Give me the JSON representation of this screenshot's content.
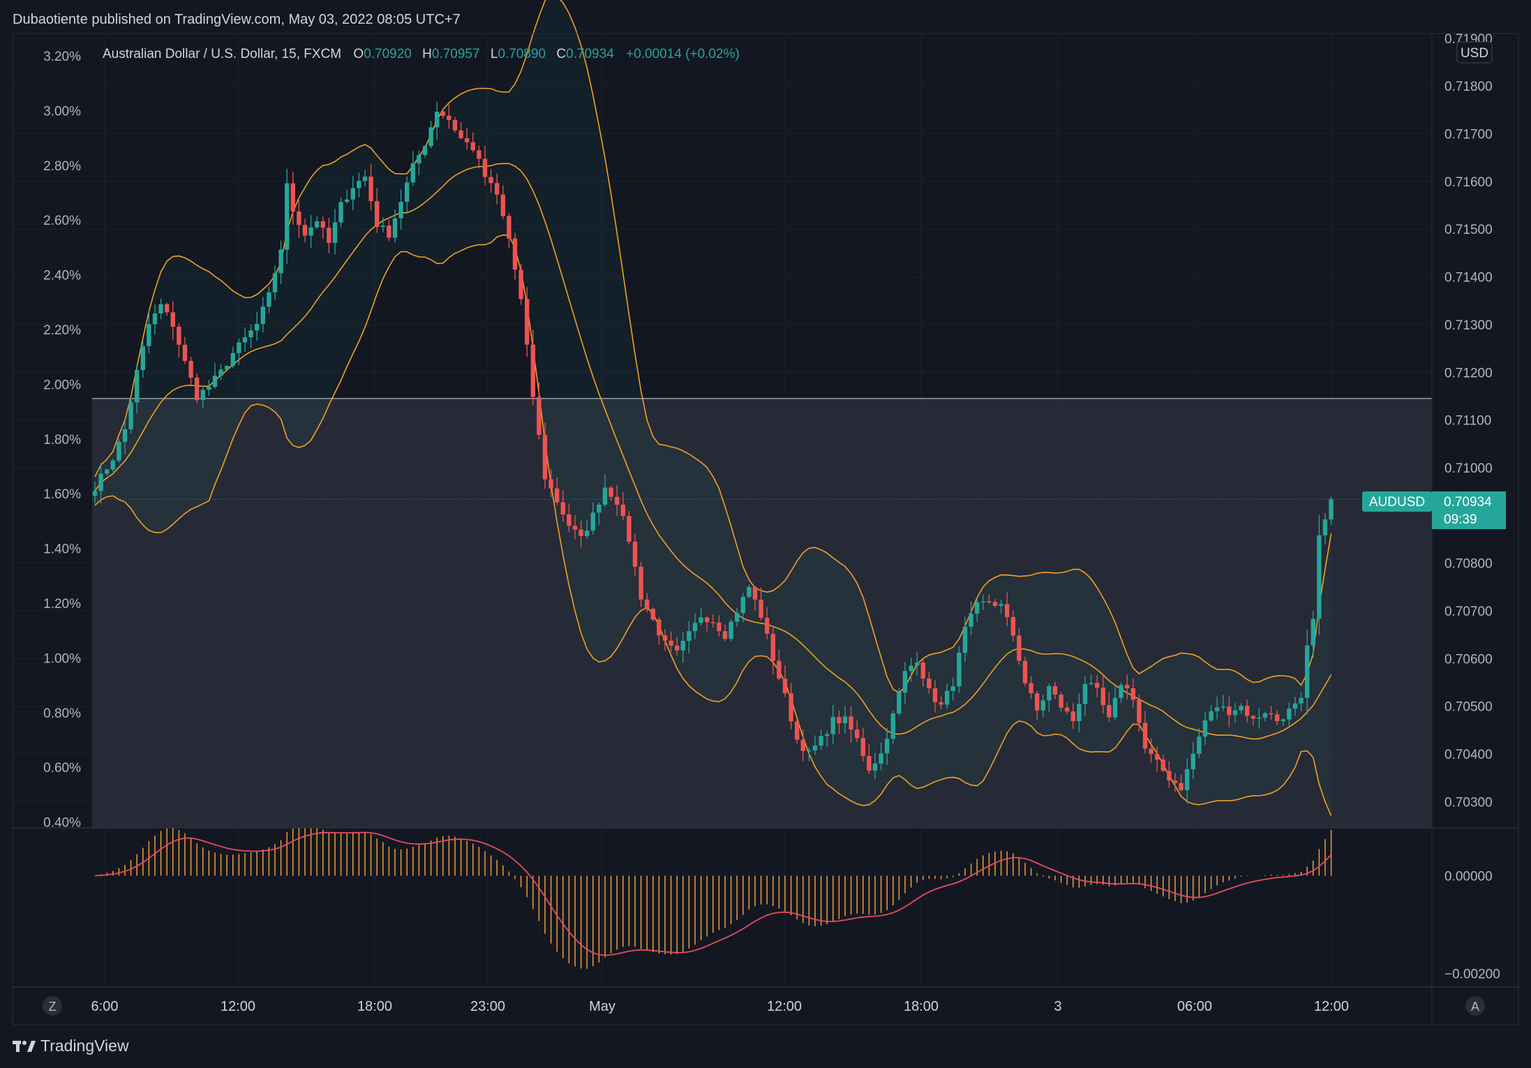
{
  "header": {
    "published": "Dubaotiente published on TradingView.com, May 03, 2022 08:05 UTC+7"
  },
  "legend": {
    "symbol": "Australian Dollar / U.S. Dollar, 15, FXCM",
    "o_label": "O",
    "o_value": "0.70920",
    "h_label": "H",
    "h_value": "0.70957",
    "l_label": "L",
    "l_value": "0.70890",
    "c_label": "C",
    "c_value": "0.70934",
    "change": "+0.00014 (+0.02%)"
  },
  "price_badge": {
    "symbol": "AUDUSD",
    "price": "0.70934",
    "countdown": "09:39"
  },
  "currency_label": "USD",
  "footer": {
    "brand": "TradingView",
    "z_button": "Z",
    "a_button": "A"
  },
  "colors": {
    "background": "#131722",
    "up": "#26a69a",
    "down": "#ef5350",
    "bollinger": "#f0a125",
    "bollinger_fill": "#1c2a33",
    "macd_hist": "#f29d38",
    "signal": "#e84b5f",
    "zone_fill": "#2a2e39"
  },
  "chart_data": {
    "type": "candlestick",
    "interval": "15",
    "right_axis": {
      "unit": "USD",
      "ticks": [
        "0.71900",
        "0.71800",
        "0.71700",
        "0.71600",
        "0.71500",
        "0.71400",
        "0.71300",
        "0.71200",
        "0.71100",
        "0.71000",
        "0.70800",
        "0.70700",
        "0.70600",
        "0.70500",
        "0.70400",
        "0.70300"
      ],
      "ylim": [
        0.70245,
        0.7191
      ]
    },
    "left_axis": {
      "ticks": [
        "3.20%",
        "3.00%",
        "2.80%",
        "2.60%",
        "2.40%",
        "2.20%",
        "2.00%",
        "1.80%",
        "1.60%",
        "1.40%",
        "1.20%",
        "1.00%",
        "0.80%",
        "0.60%",
        "0.40%"
      ]
    },
    "x_ticks": [
      "6:00",
      "12:00",
      "18:00",
      "23:00",
      "May",
      "12:00",
      "18:00",
      "3",
      "06:00",
      "12:00"
    ],
    "macd_axis": {
      "ticks": [
        "0.00000",
        "−0.00200"
      ],
      "ylim": [
        -0.00225,
        0.00095
      ]
    },
    "horizontal_line": 0.71145,
    "last_price": 0.70934,
    "anchors": [
      {
        "i": 0,
        "p": 0.7096
      },
      {
        "i": 3,
        "p": 0.7102
      },
      {
        "i": 5,
        "p": 0.7108
      },
      {
        "i": 7,
        "p": 0.712
      },
      {
        "i": 9,
        "p": 0.713
      },
      {
        "i": 11,
        "p": 0.7134
      },
      {
        "i": 13,
        "p": 0.713
      },
      {
        "i": 15,
        "p": 0.7122
      },
      {
        "i": 17,
        "p": 0.7115
      },
      {
        "i": 19,
        "p": 0.7117
      },
      {
        "i": 21,
        "p": 0.712
      },
      {
        "i": 23,
        "p": 0.7124
      },
      {
        "i": 25,
        "p": 0.7127
      },
      {
        "i": 27,
        "p": 0.713
      },
      {
        "i": 29,
        "p": 0.7136
      },
      {
        "i": 31,
        "p": 0.7146
      },
      {
        "i": 32,
        "p": 0.7159
      },
      {
        "i": 33,
        "p": 0.7154
      },
      {
        "i": 35,
        "p": 0.7149
      },
      {
        "i": 37,
        "p": 0.7152
      },
      {
        "i": 39,
        "p": 0.7147
      },
      {
        "i": 41,
        "p": 0.7155
      },
      {
        "i": 43,
        "p": 0.7159
      },
      {
        "i": 45,
        "p": 0.7161
      },
      {
        "i": 47,
        "p": 0.7151
      },
      {
        "i": 49,
        "p": 0.7149
      },
      {
        "i": 51,
        "p": 0.7156
      },
      {
        "i": 53,
        "p": 0.7163
      },
      {
        "i": 55,
        "p": 0.7168
      },
      {
        "i": 57,
        "p": 0.7175
      },
      {
        "i": 59,
        "p": 0.7173
      },
      {
        "i": 61,
        "p": 0.7169
      },
      {
        "i": 63,
        "p": 0.7167
      },
      {
        "i": 65,
        "p": 0.7161
      },
      {
        "i": 67,
        "p": 0.7157
      },
      {
        "i": 69,
        "p": 0.7148
      },
      {
        "i": 71,
        "p": 0.7135
      },
      {
        "i": 73,
        "p": 0.7115
      },
      {
        "i": 75,
        "p": 0.7098
      },
      {
        "i": 77,
        "p": 0.7093
      },
      {
        "i": 79,
        "p": 0.7088
      },
      {
        "i": 81,
        "p": 0.7085
      },
      {
        "i": 83,
        "p": 0.709
      },
      {
        "i": 85,
        "p": 0.7096
      },
      {
        "i": 87,
        "p": 0.7093
      },
      {
        "i": 89,
        "p": 0.7085
      },
      {
        "i": 91,
        "p": 0.7073
      },
      {
        "i": 93,
        "p": 0.7068
      },
      {
        "i": 95,
        "p": 0.7063
      },
      {
        "i": 97,
        "p": 0.7061
      },
      {
        "i": 99,
        "p": 0.7065
      },
      {
        "i": 101,
        "p": 0.7069
      },
      {
        "i": 103,
        "p": 0.7068
      },
      {
        "i": 105,
        "p": 0.7065
      },
      {
        "i": 107,
        "p": 0.707
      },
      {
        "i": 109,
        "p": 0.7075
      },
      {
        "i": 111,
        "p": 0.7069
      },
      {
        "i": 113,
        "p": 0.706
      },
      {
        "i": 115,
        "p": 0.7052
      },
      {
        "i": 117,
        "p": 0.7043
      },
      {
        "i": 119,
        "p": 0.704
      },
      {
        "i": 121,
        "p": 0.7043
      },
      {
        "i": 123,
        "p": 0.7047
      },
      {
        "i": 125,
        "p": 0.7047
      },
      {
        "i": 127,
        "p": 0.7043
      },
      {
        "i": 129,
        "p": 0.7037
      },
      {
        "i": 131,
        "p": 0.704
      },
      {
        "i": 133,
        "p": 0.7048
      },
      {
        "i": 135,
        "p": 0.7057
      },
      {
        "i": 137,
        "p": 0.706
      },
      {
        "i": 139,
        "p": 0.7053
      },
      {
        "i": 141,
        "p": 0.705
      },
      {
        "i": 143,
        "p": 0.7055
      },
      {
        "i": 145,
        "p": 0.7066
      },
      {
        "i": 147,
        "p": 0.7071
      },
      {
        "i": 149,
        "p": 0.7072
      },
      {
        "i": 151,
        "p": 0.7071
      },
      {
        "i": 153,
        "p": 0.7065
      },
      {
        "i": 155,
        "p": 0.7055
      },
      {
        "i": 157,
        "p": 0.7049
      },
      {
        "i": 159,
        "p": 0.7054
      },
      {
        "i": 161,
        "p": 0.705
      },
      {
        "i": 163,
        "p": 0.7047
      },
      {
        "i": 165,
        "p": 0.7055
      },
      {
        "i": 167,
        "p": 0.7053
      },
      {
        "i": 169,
        "p": 0.7047
      },
      {
        "i": 171,
        "p": 0.7055
      },
      {
        "i": 173,
        "p": 0.7052
      },
      {
        "i": 175,
        "p": 0.7041
      },
      {
        "i": 177,
        "p": 0.7038
      },
      {
        "i": 179,
        "p": 0.7035
      },
      {
        "i": 181,
        "p": 0.7033
      },
      {
        "i": 183,
        "p": 0.704
      },
      {
        "i": 185,
        "p": 0.7047
      },
      {
        "i": 187,
        "p": 0.705
      },
      {
        "i": 189,
        "p": 0.7049
      },
      {
        "i": 191,
        "p": 0.705
      },
      {
        "i": 193,
        "p": 0.7047
      },
      {
        "i": 195,
        "p": 0.7049
      },
      {
        "i": 197,
        "p": 0.7047
      },
      {
        "i": 199,
        "p": 0.7049
      },
      {
        "i": 201,
        "p": 0.7051
      },
      {
        "i": 202,
        "p": 0.7062
      },
      {
        "i": 203,
        "p": 0.7068
      },
      {
        "i": 204,
        "p": 0.7085
      },
      {
        "i": 205,
        "p": 0.709
      },
      {
        "i": 206,
        "p": 0.70934
      }
    ]
  }
}
